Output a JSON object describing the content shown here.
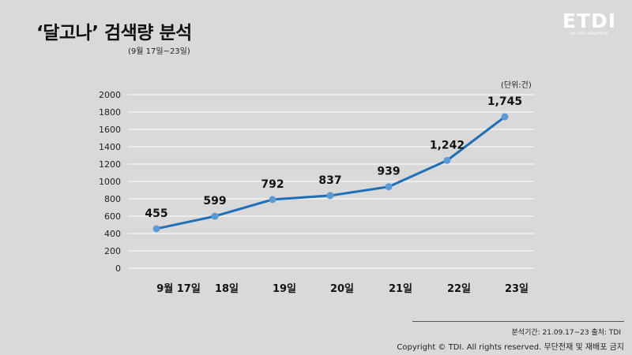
{
  "header": {
    "title": "‘달고나’ 검색량 분석",
    "subtitle": "(9월 17일~23일)"
  },
  "logo": {
    "text": "ETDI",
    "tagline": "WE SAW INNOVATION"
  },
  "chart_data": {
    "type": "line",
    "categories": [
      "9월 17일",
      "18일",
      "19일",
      "20일",
      "21일",
      "22일",
      "23일"
    ],
    "values": [
      455,
      599,
      792,
      837,
      939,
      1242,
      1745
    ],
    "value_labels": [
      "455",
      "599",
      "792",
      "837",
      "939",
      "1,242",
      "1,745"
    ],
    "y_ticks": [
      "0",
      "200",
      "400",
      "600",
      "800",
      "1000",
      "1200",
      "1400",
      "1600",
      "1800",
      "2000"
    ],
    "ylim": [
      0,
      2000
    ],
    "unit_label": "(단위:건)",
    "grid": true,
    "legend": false,
    "colors": {
      "line": "#1f6fb8",
      "marker": "#5b9bd5",
      "grid": "#ffffff"
    }
  },
  "footer": {
    "info": "분석기간: 21.09.17~23     출처: TDI",
    "copyright": "Copyright © TDI. All rights reserved. 무단전재 및 재배포 금지"
  }
}
